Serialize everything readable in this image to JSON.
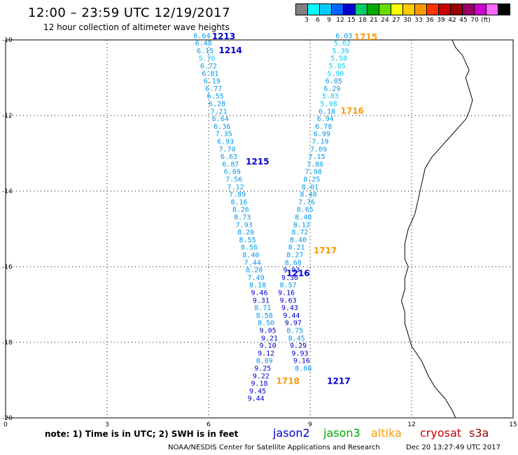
{
  "header": {
    "title": "12:00 – 23:59 UTC 12/19/2017",
    "subtitle": "12 hour collection of altimeter wave heights"
  },
  "colorbar": {
    "colors": [
      "#808080",
      "#00ffff",
      "#00ccff",
      "#0066ff",
      "#0000cc",
      "#00cc66",
      "#00aa00",
      "#66dd00",
      "#ffff00",
      "#ffcc00",
      "#ff9900",
      "#ff3300",
      "#cc0000",
      "#990000",
      "#990066",
      "#cc00cc",
      "#ff66ff",
      "#000000"
    ],
    "labels": [
      "3",
      "6",
      "9",
      "12",
      "15",
      "18",
      "21",
      "24",
      "27",
      "30",
      "33",
      "36",
      "39",
      "42",
      "45",
      "70",
      "(ft)"
    ]
  },
  "axes": {
    "x_ticks": [
      "0",
      "3",
      "6",
      "9",
      "12",
      "15"
    ],
    "y_ticks": [
      "-10",
      "-12",
      "-14",
      "-16",
      "-18",
      "-20"
    ]
  },
  "note": "note:  1) Time is in UTC;  2) SWH is in feet",
  "legend": [
    {
      "label": "jason2",
      "color": "#0000cc"
    },
    {
      "label": "jason3",
      "color": "#00aa00"
    },
    {
      "label": "altika",
      "color": "#ff9900"
    },
    {
      "label": "cryosat",
      "color": "#cc0000"
    },
    {
      "label": "s3a",
      "color": "#990000"
    }
  ],
  "footer": {
    "credit": "NOAA/NESDIS Center for Satellite Applications and Research",
    "timestamp": "Dec 20 13:27:49 UTC 2017"
  },
  "map": {
    "lon_range": [
      0,
      15
    ],
    "lat_range": [
      -20,
      -10
    ],
    "tracks": [
      {
        "name": "track-left",
        "points": [
          {
            "lon": 5.8,
            "lat": -9.95,
            "v": "6.64"
          },
          {
            "lon": 5.85,
            "lat": -10.15,
            "v": "6.48"
          },
          {
            "lon": 5.9,
            "lat": -10.35,
            "v": "6.15"
          },
          {
            "lon": 5.95,
            "lat": -10.55,
            "v": "5.76"
          },
          {
            "lon": 6.0,
            "lat": -10.75,
            "v": "6.72"
          },
          {
            "lon": 6.05,
            "lat": -10.95,
            "v": "6.81"
          },
          {
            "lon": 6.1,
            "lat": -11.15,
            "v": "6.19"
          },
          {
            "lon": 6.15,
            "lat": -11.35,
            "v": "6.77"
          },
          {
            "lon": 6.2,
            "lat": -11.55,
            "v": "6.55"
          },
          {
            "lon": 6.25,
            "lat": -11.75,
            "v": "6.28"
          },
          {
            "lon": 6.3,
            "lat": -11.95,
            "v": "7.21"
          },
          {
            "lon": 6.35,
            "lat": -12.15,
            "v": "6.64"
          },
          {
            "lon": 6.4,
            "lat": -12.35,
            "v": "6.36"
          },
          {
            "lon": 6.45,
            "lat": -12.55,
            "v": "7.35"
          },
          {
            "lon": 6.5,
            "lat": -12.75,
            "v": "6.93"
          },
          {
            "lon": 6.55,
            "lat": -12.95,
            "v": "7.70"
          },
          {
            "lon": 6.6,
            "lat": -13.15,
            "v": "6.63"
          },
          {
            "lon": 6.65,
            "lat": -13.35,
            "v": "6.87"
          },
          {
            "lon": 6.7,
            "lat": -13.55,
            "v": "6.69"
          },
          {
            "lon": 6.75,
            "lat": -13.75,
            "v": "7.56"
          },
          {
            "lon": 6.8,
            "lat": -13.95,
            "v": "7.12"
          },
          {
            "lon": 6.85,
            "lat": -14.15,
            "v": "7.89"
          },
          {
            "lon": 6.9,
            "lat": -14.35,
            "v": "8.16"
          },
          {
            "lon": 6.95,
            "lat": -14.55,
            "v": "8.26"
          },
          {
            "lon": 7.0,
            "lat": -14.75,
            "v": "8.73"
          },
          {
            "lon": 7.05,
            "lat": -14.95,
            "v": "7.93"
          },
          {
            "lon": 7.1,
            "lat": -15.15,
            "v": "8.20"
          },
          {
            "lon": 7.15,
            "lat": -15.35,
            "v": "8.55"
          },
          {
            "lon": 7.2,
            "lat": -15.55,
            "v": "8.56"
          },
          {
            "lon": 7.25,
            "lat": -15.75,
            "v": "8.40"
          },
          {
            "lon": 7.3,
            "lat": -15.95,
            "v": "7.44"
          },
          {
            "lon": 7.35,
            "lat": -16.15,
            "v": "8.20"
          },
          {
            "lon": 7.4,
            "lat": -16.35,
            "v": "7.49"
          },
          {
            "lon": 7.45,
            "lat": -16.55,
            "v": "8.18"
          },
          {
            "lon": 7.5,
            "lat": -16.75,
            "v": "9.46"
          },
          {
            "lon": 7.55,
            "lat": -16.95,
            "v": "9.31"
          },
          {
            "lon": 7.6,
            "lat": -17.15,
            "v": "8.71"
          },
          {
            "lon": 7.65,
            "lat": -17.35,
            "v": "8.58"
          },
          {
            "lon": 7.7,
            "lat": -17.55,
            "v": "8.50"
          },
          {
            "lon": 7.75,
            "lat": -17.75,
            "v": "9.05"
          },
          {
            "lon": 7.8,
            "lat": -17.95,
            "v": "9.21"
          },
          {
            "lon": 7.75,
            "lat": -18.15,
            "v": "9.10"
          },
          {
            "lon": 7.7,
            "lat": -18.35,
            "v": "9.12"
          },
          {
            "lon": 7.65,
            "lat": -18.55,
            "v": "8.89"
          },
          {
            "lon": 7.6,
            "lat": -18.75,
            "v": "9.25"
          },
          {
            "lon": 7.55,
            "lat": -18.95,
            "v": "9.22"
          },
          {
            "lon": 7.5,
            "lat": -19.15,
            "v": "9.18"
          },
          {
            "lon": 7.45,
            "lat": -19.35,
            "v": "9.45"
          },
          {
            "lon": 7.4,
            "lat": -19.55,
            "v": "9.44"
          }
        ]
      },
      {
        "name": "track-right",
        "points": [
          {
            "lon": 10.0,
            "lat": -9.95,
            "v": "6.03"
          },
          {
            "lon": 9.95,
            "lat": -10.15,
            "v": "5.62"
          },
          {
            "lon": 9.9,
            "lat": -10.35,
            "v": "5.39"
          },
          {
            "lon": 9.85,
            "lat": -10.55,
            "v": "5.58"
          },
          {
            "lon": 9.8,
            "lat": -10.75,
            "v": "5.85"
          },
          {
            "lon": 9.75,
            "lat": -10.95,
            "v": "5.90"
          },
          {
            "lon": 9.7,
            "lat": -11.15,
            "v": "6.05"
          },
          {
            "lon": 9.65,
            "lat": -11.35,
            "v": "6.29"
          },
          {
            "lon": 9.6,
            "lat": -11.55,
            "v": "5.83"
          },
          {
            "lon": 9.55,
            "lat": -11.75,
            "v": "5.98"
          },
          {
            "lon": 9.5,
            "lat": -11.95,
            "v": "6.18"
          },
          {
            "lon": 9.45,
            "lat": -12.15,
            "v": "6.94"
          },
          {
            "lon": 9.4,
            "lat": -12.35,
            "v": "6.78"
          },
          {
            "lon": 9.35,
            "lat": -12.55,
            "v": "6.99"
          },
          {
            "lon": 9.3,
            "lat": -12.75,
            "v": "7.19"
          },
          {
            "lon": 9.25,
            "lat": -12.95,
            "v": "7.09"
          },
          {
            "lon": 9.2,
            "lat": -13.15,
            "v": "7.15"
          },
          {
            "lon": 9.15,
            "lat": -13.35,
            "v": "7.86"
          },
          {
            "lon": 9.1,
            "lat": -13.55,
            "v": "7.98"
          },
          {
            "lon": 9.05,
            "lat": -13.75,
            "v": "8.25"
          },
          {
            "lon": 9.0,
            "lat": -13.95,
            "v": "8.01"
          },
          {
            "lon": 8.95,
            "lat": -14.15,
            "v": "8.40"
          },
          {
            "lon": 8.9,
            "lat": -14.35,
            "v": "7.76"
          },
          {
            "lon": 8.85,
            "lat": -14.55,
            "v": "8.65"
          },
          {
            "lon": 8.8,
            "lat": -14.75,
            "v": "8.40"
          },
          {
            "lon": 8.75,
            "lat": -14.95,
            "v": "8.12"
          },
          {
            "lon": 8.7,
            "lat": -15.15,
            "v": "8.72"
          },
          {
            "lon": 8.65,
            "lat": -15.35,
            "v": "8.40"
          },
          {
            "lon": 8.6,
            "lat": -15.55,
            "v": "8.21"
          },
          {
            "lon": 8.55,
            "lat": -15.75,
            "v": "8.27"
          },
          {
            "lon": 8.5,
            "lat": -15.95,
            "v": "8.68"
          },
          {
            "lon": 8.45,
            "lat": -16.15,
            "v": "9.03"
          },
          {
            "lon": 8.4,
            "lat": -16.35,
            "v": "9.30"
          },
          {
            "lon": 8.35,
            "lat": -16.55,
            "v": "8.57"
          },
          {
            "lon": 8.3,
            "lat": -16.75,
            "v": "9.16"
          },
          {
            "lon": 8.35,
            "lat": -16.95,
            "v": "9.63"
          },
          {
            "lon": 8.4,
            "lat": -17.15,
            "v": "9.43"
          },
          {
            "lon": 8.45,
            "lat": -17.35,
            "v": "9.44"
          },
          {
            "lon": 8.5,
            "lat": -17.55,
            "v": "9.97"
          },
          {
            "lon": 8.55,
            "lat": -17.75,
            "v": "8.75"
          },
          {
            "lon": 8.6,
            "lat": -17.95,
            "v": "8.45"
          },
          {
            "lon": 8.65,
            "lat": -18.15,
            "v": "9.29"
          },
          {
            "lon": 8.7,
            "lat": -18.35,
            "v": "9.93"
          },
          {
            "lon": 8.75,
            "lat": -18.55,
            "v": "9.16"
          },
          {
            "lon": 8.8,
            "lat": -18.75,
            "v": "8.68"
          }
        ]
      }
    ],
    "pass_labels": [
      {
        "text": "1213",
        "lon": 6.1,
        "lat": -9.98,
        "color": "#0000cc"
      },
      {
        "text": "1214",
        "lon": 6.3,
        "lat": -10.35,
        "color": "#0000cc"
      },
      {
        "text": "1215",
        "lon": 7.1,
        "lat": -13.3,
        "color": "#0000cc"
      },
      {
        "text": "1216",
        "lon": 8.3,
        "lat": -16.25,
        "color": "#0000cc"
      },
      {
        "text": "1217",
        "lon": 9.5,
        "lat": -19.1,
        "color": "#0000cc"
      },
      {
        "text": "1715",
        "lon": 10.3,
        "lat": -10.0,
        "color": "#ff9900"
      },
      {
        "text": "1716",
        "lon": 9.9,
        "lat": -11.95,
        "color": "#ff9900"
      },
      {
        "text": "1717",
        "lon": 9.1,
        "lat": -15.65,
        "color": "#ff9900"
      },
      {
        "text": "1718",
        "lon": 8.0,
        "lat": -19.1,
        "color": "#ff9900"
      }
    ],
    "coastline": [
      [
        13.2,
        -10.0
      ],
      [
        13.3,
        -10.2
      ],
      [
        13.5,
        -10.4
      ],
      [
        13.6,
        -10.6
      ],
      [
        13.7,
        -10.8
      ],
      [
        13.6,
        -11.0
      ],
      [
        13.7,
        -11.3
      ],
      [
        13.8,
        -11.6
      ],
      [
        13.7,
        -11.9
      ],
      [
        13.6,
        -12.1
      ],
      [
        13.4,
        -12.3
      ],
      [
        13.2,
        -12.5
      ],
      [
        12.9,
        -12.8
      ],
      [
        12.6,
        -13.1
      ],
      [
        12.4,
        -13.4
      ],
      [
        12.3,
        -13.8
      ],
      [
        12.2,
        -14.2
      ],
      [
        12.1,
        -14.6
      ],
      [
        11.9,
        -15.0
      ],
      [
        11.8,
        -15.4
      ],
      [
        11.8,
        -15.8
      ],
      [
        11.9,
        -16.0
      ],
      [
        11.8,
        -16.3
      ],
      [
        11.8,
        -16.6
      ],
      [
        11.7,
        -16.9
      ],
      [
        11.8,
        -17.2
      ],
      [
        11.8,
        -17.5
      ],
      [
        11.9,
        -17.8
      ],
      [
        12.0,
        -18.1
      ],
      [
        12.3,
        -18.5
      ],
      [
        12.5,
        -18.9
      ],
      [
        12.7,
        -19.2
      ],
      [
        13.0,
        -19.5
      ],
      [
        13.2,
        -19.8
      ],
      [
        13.3,
        -20.0
      ]
    ]
  }
}
